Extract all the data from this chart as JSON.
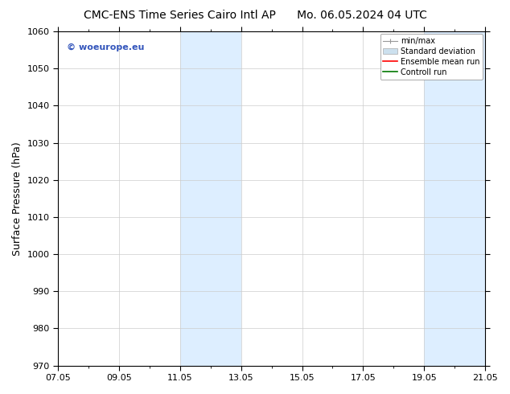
{
  "title_left": "CMC-ENS Time Series Cairo Intl AP",
  "title_right": "Mo. 06.05.2024 04 UTC",
  "ylabel": "Surface Pressure (hPa)",
  "ylim": [
    970,
    1060
  ],
  "yticks": [
    970,
    980,
    990,
    1000,
    1010,
    1020,
    1030,
    1040,
    1050,
    1060
  ],
  "xticks_labels": [
    "07.05",
    "09.05",
    "11.05",
    "13.05",
    "15.05",
    "17.05",
    "19.05",
    "21.05"
  ],
  "xticks_positions": [
    0,
    2,
    4,
    6,
    8,
    10,
    12,
    14
  ],
  "xlim": [
    0,
    14
  ],
  "shaded_bands": [
    {
      "x_start": 4,
      "x_end": 6,
      "color": "#ddeeff"
    },
    {
      "x_start": 12,
      "x_end": 14,
      "color": "#ddeeff"
    }
  ],
  "watermark_text": "© woeurope.eu",
  "watermark_color": "#3355bb",
  "legend_items": [
    {
      "label": "min/max",
      "color": "#aaaaaa",
      "style": "errorbar"
    },
    {
      "label": "Standard deviation",
      "color": "#cce0ee",
      "style": "rect"
    },
    {
      "label": "Ensemble mean run",
      "color": "#ff0000",
      "style": "line"
    },
    {
      "label": "Controll run",
      "color": "#007700",
      "style": "line"
    }
  ],
  "bg_color": "#ffffff",
  "grid_color": "#cccccc",
  "title_fontsize": 10,
  "label_fontsize": 9,
  "tick_fontsize": 8,
  "legend_fontsize": 7
}
